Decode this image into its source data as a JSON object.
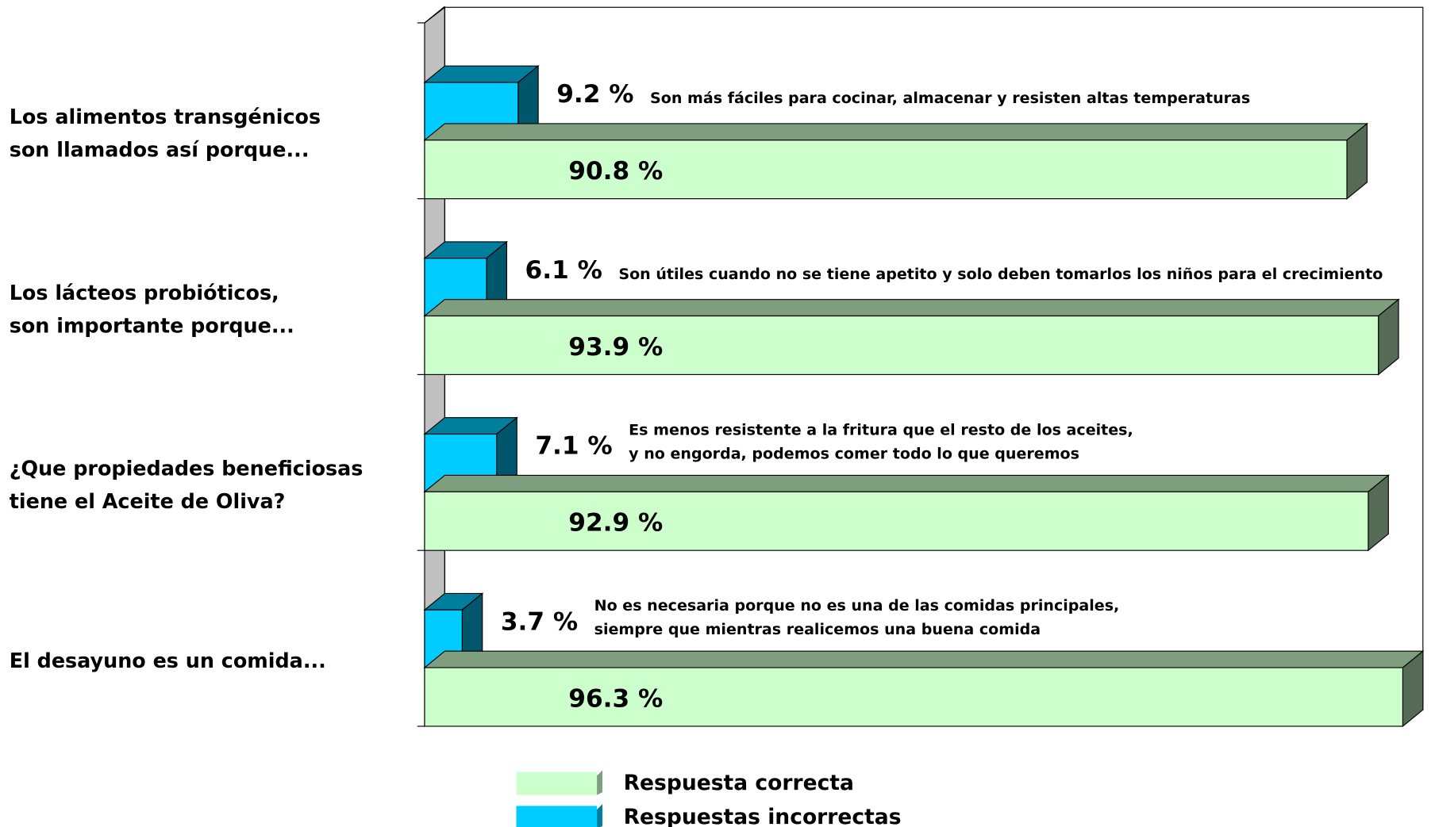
{
  "chart_data": {
    "type": "bar3d_horizontal",
    "categories": [
      [
        "Los alimentos transgénicos",
        "son llamados así porque..."
      ],
      [
        "Los lácteos probióticos,",
        "son importante porque..."
      ],
      [
        "¿Que propiedades beneficiosas",
        "tiene el Aceite de Oliva?"
      ],
      [
        "El desayuno es un comida..."
      ]
    ],
    "series": [
      {
        "name": "Respuesta correcta",
        "color": "#ccffcc",
        "values": [
          90.8,
          93.9,
          92.9,
          96.3
        ],
        "value_labels": [
          "90.8 %",
          "93.9 %",
          "92.9 %",
          "96.3 %"
        ]
      },
      {
        "name": "Respuestas incorrectas",
        "color": "#00ccff",
        "values": [
          9.2,
          6.1,
          7.1,
          3.7
        ],
        "value_labels": [
          "9.2 %",
          "6.1 %",
          "7.1 %",
          "3.7 %"
        ]
      }
    ],
    "annotations": [
      [
        "Son más fáciles para cocinar, almacenar y resisten  altas temperaturas"
      ],
      [
        "Son útiles cuando no se tiene apetito y solo deben tomarlos los niños para el crecimiento"
      ],
      [
        "Es menos resistente a la fritura que el resto de los aceites,",
        "y no engorda, podemos comer todo lo que queremos"
      ],
      [
        "No es necesaria porque no es una de las comidas principales,",
        "siempre que mientras realicemos una buena comida"
      ]
    ],
    "xlim": [
      0,
      100
    ],
    "legend": "bottom"
  }
}
